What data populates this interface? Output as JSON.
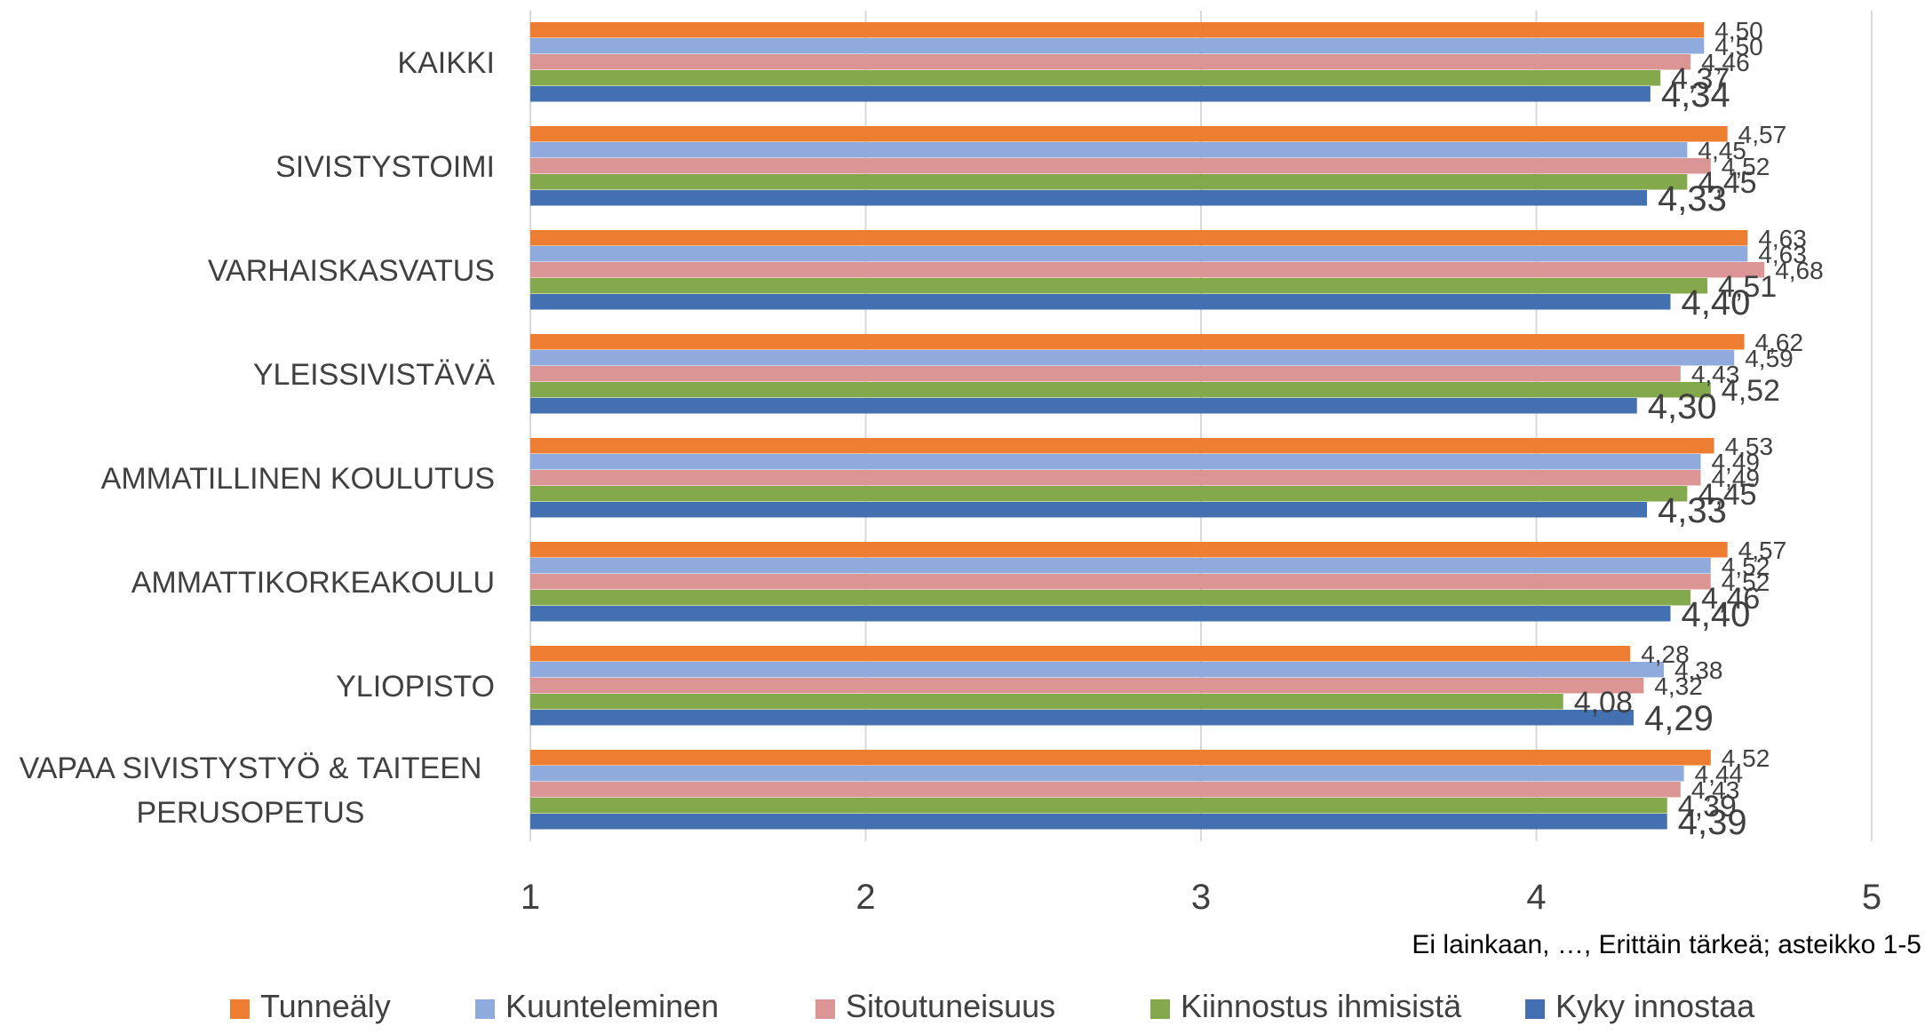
{
  "chart_data": {
    "type": "bar",
    "orientation": "horizontal",
    "categories": [
      "KAIKKI",
      "SIVISTYSTOIMI",
      "VARHAISKASVATUS",
      "YLEISSIVISTÄVÄ",
      "AMMATILLINEN KOULUTUS",
      "AMMATTIKORKEAKOULU",
      "YLIOPISTO",
      "VAPAA SIVISTYSTYÖ & TAITEEN PERUSOPETUS"
    ],
    "category_lines": [
      [
        "KAIKKI"
      ],
      [
        "SIVISTYSTOIMI"
      ],
      [
        "VARHAISKASVATUS"
      ],
      [
        "YLEISSIVISTÄVÄ"
      ],
      [
        "AMMATILLINEN KOULUTUS"
      ],
      [
        "AMMATTIKORKEAKOULU"
      ],
      [
        "YLIOPISTO"
      ],
      [
        "VAPAA SIVISTYSTYÖ & TAITEEN",
        "PERUSOPETUS"
      ]
    ],
    "series": [
      {
        "name": "Tunneäly",
        "color": "#ED7D31",
        "values": [
          4.5,
          4.57,
          4.63,
          4.62,
          4.53,
          4.57,
          4.28,
          4.52
        ],
        "labels": [
          "4,50",
          "4,57",
          "4,63",
          "4,62",
          "4,53",
          "4,57",
          "4,28",
          "4,52"
        ]
      },
      {
        "name": "Kuunteleminen",
        "color": "#8FAADC",
        "values": [
          4.5,
          4.45,
          4.63,
          4.59,
          4.49,
          4.52,
          4.38,
          4.44
        ],
        "labels": [
          "4,50",
          "4,45",
          "4,63",
          "4,59",
          "4,49",
          "4,52",
          "4,38",
          "4,44"
        ]
      },
      {
        "name": "Sitoutuneisuus",
        "color": "#DC9595",
        "values": [
          4.46,
          4.52,
          4.68,
          4.43,
          4.49,
          4.52,
          4.32,
          4.43
        ],
        "labels": [
          "4,46",
          "4,52",
          "4,68",
          "4,43",
          "4,49",
          "4,52",
          "4,32",
          "4,43"
        ]
      },
      {
        "name": "Kiinnostus ihmisistä",
        "color": "#84A84C",
        "values": [
          4.37,
          4.45,
          4.51,
          4.52,
          4.45,
          4.46,
          4.08,
          4.39
        ],
        "labels": [
          "4,37",
          "4,45",
          "4,51",
          "4,52",
          "4,45",
          "4,46",
          "4,08",
          "4,39"
        ]
      },
      {
        "name": "Kyky innostaa",
        "color": "#4270B0",
        "values": [
          4.34,
          4.33,
          4.4,
          4.3,
          4.33,
          4.4,
          4.29,
          4.39
        ],
        "labels": [
          "4,34",
          "4,33",
          "4,40",
          "4,30",
          "4,33",
          "4,40",
          "4,29",
          "4,39"
        ]
      }
    ],
    "xlim": [
      1,
      5
    ],
    "x_ticks": [
      "1",
      "2",
      "3",
      "4",
      "5"
    ],
    "xlabel": "Ei lainkaan, …, Erittäin tärkeä; asteikko 1-5",
    "grid": "vertical",
    "legend": "bottom"
  }
}
